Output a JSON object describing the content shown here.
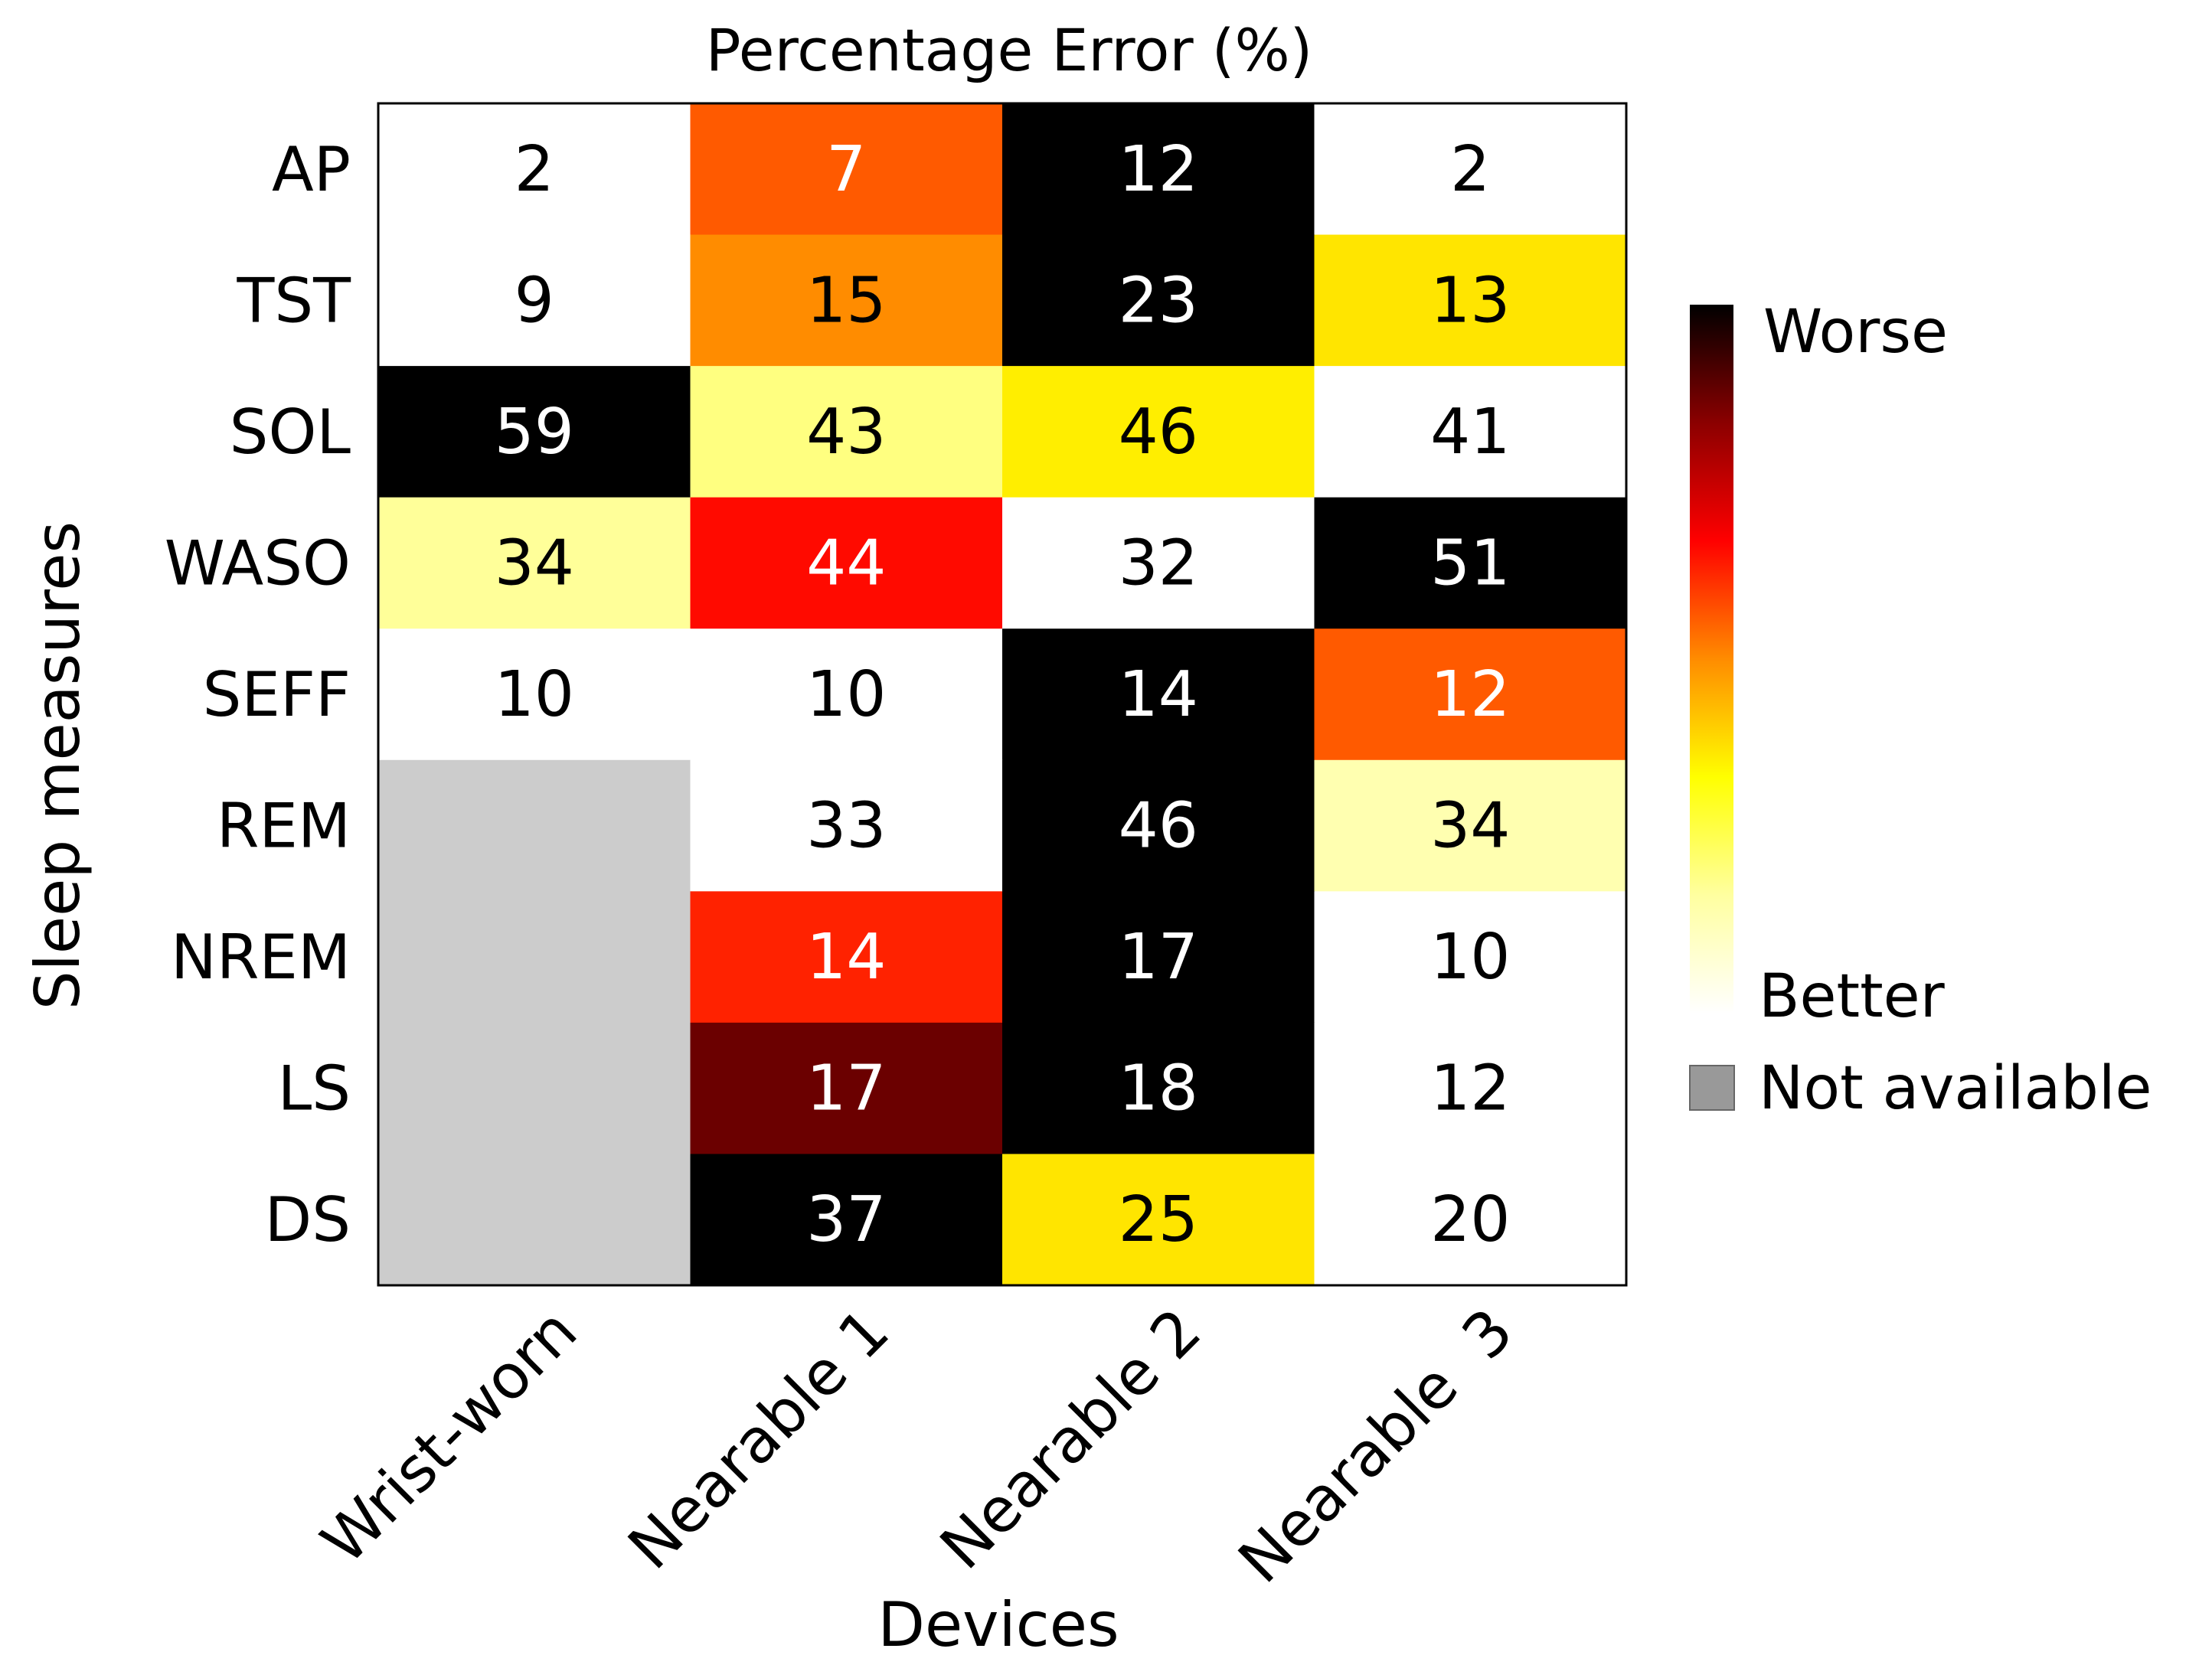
{
  "chart_data": {
    "type": "heatmap",
    "title": "Percentage Error (%)",
    "xlabel": "Devices",
    "ylabel": "Sleep measures",
    "columns": [
      "Wrist-worn",
      "Nearable 1",
      "Nearable 2",
      "Nearable  3"
    ],
    "rows": [
      "AP",
      "TST",
      "SOL",
      "WASO",
      "SEFF",
      "REM",
      "NREM",
      "LS",
      "DS"
    ],
    "values": [
      [
        2,
        7,
        12,
        2
      ],
      [
        9,
        15,
        23,
        13
      ],
      [
        59,
        43,
        46,
        41
      ],
      [
        34,
        44,
        32,
        51
      ],
      [
        10,
        10,
        14,
        12
      ],
      [
        null,
        33,
        46,
        34
      ],
      [
        null,
        14,
        17,
        10
      ],
      [
        null,
        17,
        18,
        12
      ],
      [
        null,
        37,
        25,
        20
      ]
    ],
    "cell_colors": [
      [
        "#ffffff",
        "#ff5a00",
        "#000000",
        "#ffffff"
      ],
      [
        "#ffffff",
        "#ff8c00",
        "#000000",
        "#ffe500"
      ],
      [
        "#000000",
        "#ffff80",
        "#ffee00",
        "#ffffff"
      ],
      [
        "#ffff99",
        "#ff0a00",
        "#ffffff",
        "#000000"
      ],
      [
        "#ffffff",
        "#ffffff",
        "#000000",
        "#ff5a00"
      ],
      [
        "#cccccc",
        "#ffffff",
        "#000000",
        "#ffffb0"
      ],
      [
        "#cccccc",
        "#ff2200",
        "#000000",
        "#ffffff"
      ],
      [
        "#cccccc",
        "#6b0000",
        "#000000",
        "#ffffff"
      ],
      [
        "#cccccc",
        "#000000",
        "#ffe500",
        "#ffffff"
      ]
    ],
    "colorscale": {
      "high_label": "Worse",
      "low_label": "Better",
      "stops": [
        "#000000",
        "#8b0000",
        "#ff0000",
        "#ff8c00",
        "#ffff00",
        "#ffffa0",
        "#ffffff"
      ]
    },
    "missing": {
      "label": "Not available",
      "color": "#999999",
      "cell_color": "#cccccc"
    },
    "legend_position": "right"
  }
}
